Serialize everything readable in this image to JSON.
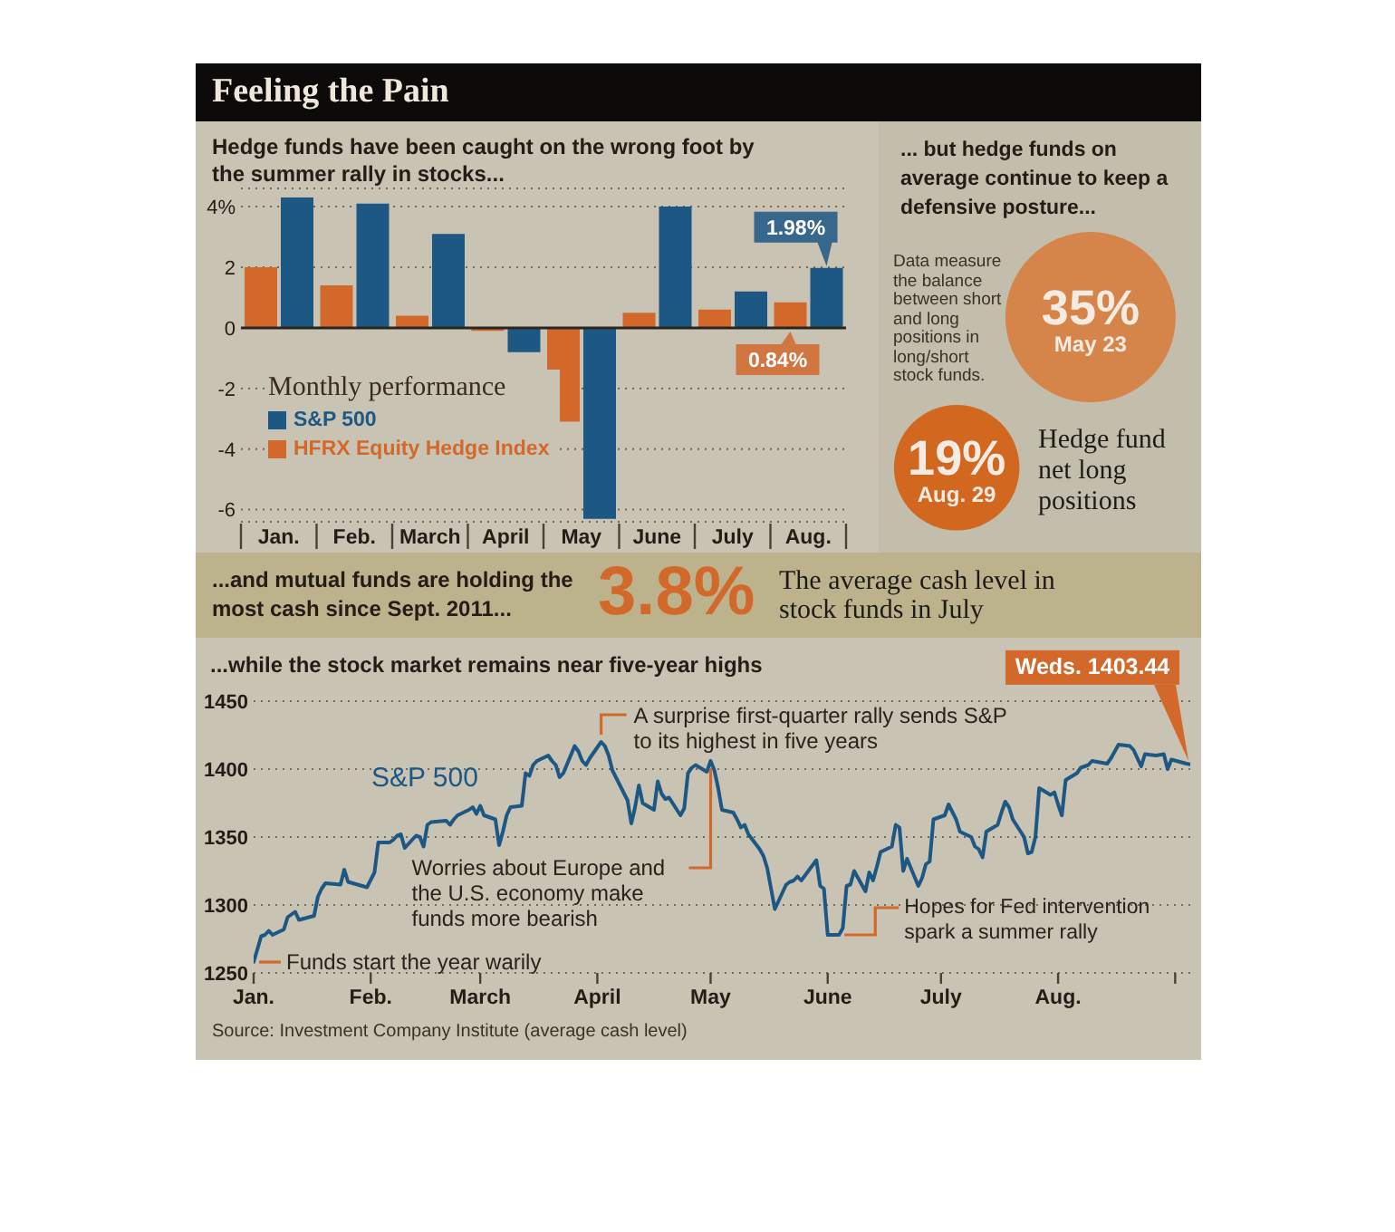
{
  "chart_data": [
    {
      "type": "bar",
      "title": "Feeling the Pain",
      "subtitle": "Hedge funds have been caught on the wrong foot by the summer rally in stocks...",
      "legend_title": "Monthly performance",
      "categories": [
        "Jan.",
        "Feb.",
        "March",
        "April",
        "May",
        "June",
        "July",
        "Aug."
      ],
      "series": [
        {
          "name": "HFRX Equity Hedge Index",
          "color": "#d2692b",
          "values": [
            2.0,
            1.4,
            0.4,
            -0.1,
            -3.1,
            0.5,
            0.6,
            0.84
          ],
          "value_labels": [
            null,
            null,
            null,
            null,
            null,
            null,
            null,
            "0.84%"
          ]
        },
        {
          "name": "S&P 500",
          "color": "#1d5784",
          "values": [
            4.3,
            4.1,
            3.1,
            -0.8,
            -6.3,
            4.0,
            1.2,
            1.98
          ],
          "value_labels": [
            null,
            null,
            null,
            null,
            null,
            null,
            null,
            "1.98%"
          ]
        }
      ],
      "ylim": [
        -6.4,
        4.6
      ],
      "yticks": [
        {
          "value": 4,
          "label": "4%"
        },
        2,
        0,
        -2,
        -4,
        -6
      ],
      "grid": "y",
      "legend": "bottom left",
      "ref_lines": [
        {
          "axis": "y",
          "value": 0,
          "color": "#2b2520"
        }
      ]
    },
    {
      "type": "other",
      "title": "... but hedge funds on average continue to keep a defensive posture...",
      "categories": [
        "May 23",
        "Aug. 29"
      ],
      "values": [
        35,
        19
      ],
      "value_labels": [
        "35%",
        "19%"
      ],
      "annotations": [
        "Data measure the balance between short and long positions in long/short stock funds.",
        "Hedge fund net long positions"
      ]
    },
    {
      "type": "other",
      "title": "...and mutual funds are holding the most cash since Sept. 2011...",
      "annotations": [
        "3.8%",
        "The average cash level in stock funds in July"
      ]
    },
    {
      "type": "line",
      "title": "...while the stock market remains near five-year highs",
      "x": [
        "--01-01",
        "--01-03",
        "--01-04",
        "--01-05",
        "--01-06",
        "--01-09",
        "--01-10",
        "--01-11",
        "--01-12",
        "--01-13",
        "--01-17",
        "--01-18",
        "--01-19",
        "--01-20",
        "--01-24",
        "--01-25",
        "--01-26",
        "--01-31",
        "--02-02",
        "--02-03",
        "--02-06",
        "--02-07",
        "--02-08",
        "--02-09",
        "--02-10",
        "--02-13",
        "--02-14",
        "--02-15",
        "--02-16",
        "--02-17",
        "--02-21",
        "--02-22",
        "--02-23",
        "--02-24",
        "--02-27",
        "--02-28",
        "--02-29",
        "--03-01",
        "--03-02",
        "--03-05",
        "--03-06",
        "--03-07",
        "--03-08",
        "--03-09",
        "--03-12",
        "--03-13",
        "--03-14",
        "--03-15",
        "--03-16",
        "--03-19",
        "--03-20",
        "--03-21",
        "--03-22",
        "--03-23",
        "--03-26",
        "--03-27",
        "--03-28",
        "--03-29",
        "--03-30",
        "--04-02",
        "--04-03",
        "--04-04",
        "--04-05",
        "--04-09",
        "--04-10",
        "--04-11",
        "--04-12",
        "--04-13",
        "--04-16",
        "--04-17",
        "--04-18",
        "--04-19",
        "--04-20",
        "--04-23",
        "--04-24",
        "--04-25",
        "--04-26",
        "--04-27",
        "--04-30",
        "--05-01",
        "--05-02",
        "--05-03",
        "--05-04",
        "--05-07",
        "--05-08",
        "--05-09",
        "--05-10",
        "--05-11",
        "--05-14",
        "--05-15",
        "--05-16",
        "--05-17",
        "--05-18",
        "--05-21",
        "--05-22",
        "--05-23",
        "--05-24",
        "--05-25",
        "--05-29",
        "--05-30",
        "--05-31",
        "--06-01",
        "--06-04",
        "--06-05",
        "--06-06",
        "--06-07",
        "--06-08",
        "--06-11",
        "--06-12",
        "--06-13",
        "--06-14",
        "--06-15",
        "--06-18",
        "--06-19",
        "--06-20",
        "--06-21",
        "--06-22",
        "--06-25",
        "--06-26",
        "--06-27",
        "--06-28",
        "--06-29",
        "--07-02",
        "--07-03",
        "--07-05",
        "--07-06",
        "--07-09",
        "--07-10",
        "--07-11",
        "--07-12",
        "--07-13",
        "--07-16",
        "--07-17",
        "--07-18",
        "--07-19",
        "--07-20",
        "--07-23",
        "--07-24",
        "--07-25",
        "--07-26",
        "--07-27",
        "--07-30",
        "--07-31",
        "--08-01",
        "--08-02",
        "--08-03",
        "--08-06",
        "--08-07",
        "--08-09",
        "--08-10",
        "--08-14",
        "--08-15",
        "--08-17",
        "--08-20",
        "--08-21",
        "--08-23",
        "--08-24",
        "--08-27",
        "--08-29",
        "--08-30",
        "--08-31",
        "--09-04",
        "--09-05"
      ],
      "series": [
        {
          "name": "S&P 500",
          "color": "#1d5784",
          "values": [
            1258,
            1277,
            1278,
            1281,
            1278,
            1282,
            1291,
            1293,
            1295,
            1289,
            1292,
            1306,
            1312,
            1316,
            1315,
            1326,
            1317,
            1313,
            1324,
            1346,
            1346,
            1348,
            1351,
            1352,
            1342,
            1351,
            1350,
            1343,
            1359,
            1361,
            1362,
            1359,
            1363,
            1366,
            1370,
            1372,
            1367,
            1373,
            1366,
            1363,
            1344,
            1354,
            1366,
            1372,
            1373,
            1397,
            1395,
            1403,
            1406,
            1410,
            1406,
            1403,
            1394,
            1397,
            1417,
            1413,
            1406,
            1403,
            1408,
            1420,
            1417,
            1410,
            1399,
            1377,
            1360,
            1372,
            1388,
            1375,
            1370,
            1391,
            1382,
            1378,
            1379,
            1366,
            1371,
            1397,
            1401,
            1403,
            1398,
            1406,
            1399,
            1386,
            1370,
            1368,
            1363,
            1357,
            1359,
            1352,
            1341,
            1336,
            1327,
            1312,
            1297,
            1315,
            1317,
            1318,
            1321,
            1318,
            1333,
            1314,
            1312,
            1278,
            1278,
            1283,
            1314,
            1315,
            1325,
            1310,
            1324,
            1318,
            1328,
            1339,
            1343,
            1359,
            1357,
            1325,
            1334,
            1314,
            1320,
            1330,
            1332,
            1363,
            1366,
            1374,
            1363,
            1354,
            1350,
            1343,
            1341,
            1335,
            1354,
            1359,
            1368,
            1376,
            1372,
            1363,
            1350,
            1338,
            1339,
            1350,
            1386,
            1381,
            1383,
            1374,
            1366,
            1392,
            1397,
            1401,
            1403,
            1406,
            1404,
            1408,
            1418,
            1417,
            1414,
            1402,
            1411,
            1410,
            1411,
            1400,
            1407,
            1404,
            1403.44
          ]
        }
      ],
      "xlim": [
        "--01-01",
        "--09-05"
      ],
      "xticks": [
        {
          "value": "--01-01",
          "label": "Jan."
        },
        {
          "value": "--02-01",
          "label": "Feb."
        },
        {
          "value": "--03-01",
          "label": "March"
        },
        {
          "value": "--04-01",
          "label": "April"
        },
        {
          "value": "--05-01",
          "label": "May"
        },
        {
          "value": "--06-01",
          "label": "June"
        },
        {
          "value": "--07-01",
          "label": "July"
        },
        {
          "value": "--08-01",
          "label": "Aug."
        },
        {
          "value": "--09-01",
          "label": null
        }
      ],
      "ylim": [
        1250,
        1450
      ],
      "yticks": [
        1250,
        1300,
        1350,
        1400,
        1450
      ],
      "grid": "y",
      "annotations": [
        {
          "text": "Funds start the year warily",
          "x": "--01-01",
          "y": 1258
        },
        {
          "text": "A surprise first-quarter rally sends S&P to its highest in five years",
          "x": "--04-02",
          "y": 1420
        },
        {
          "text": "Worries about Europe and the U.S. economy make funds more bearish",
          "x": "--05-01",
          "y": 1406
        },
        {
          "text": "Hopes for Fed intervention spark a summer rally",
          "x": "--06-04",
          "y": 1278
        },
        {
          "text": "Weds. 1403.44",
          "x": "--09-05",
          "y": 1403.44
        },
        "Source: Investment Company Institute (average cash level)"
      ]
    }
  ]
}
